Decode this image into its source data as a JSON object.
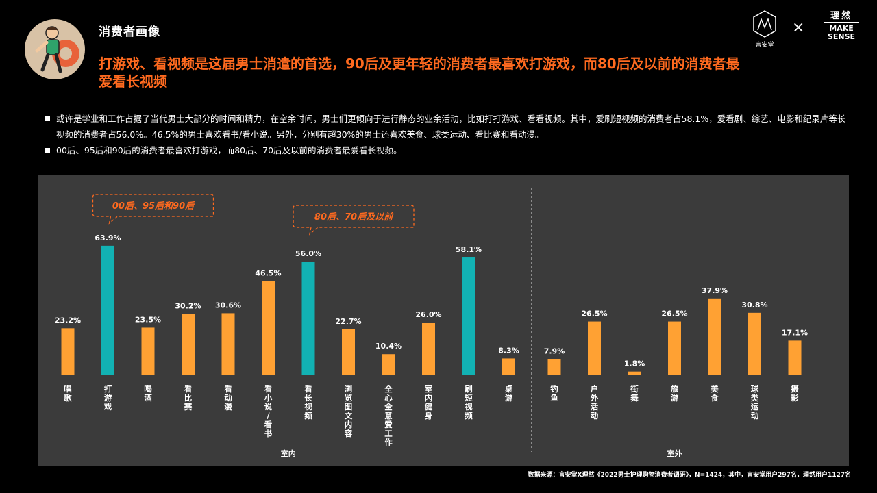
{
  "header": {
    "section_title": "消费者画像",
    "headline": "打游戏、看视频是这届男士消遣的首选，90后及更年轻的消费者最喜欢打游戏，而80后及以前的消费者最爱看长视频"
  },
  "logos": {
    "left_text": "言安堂",
    "times": "×",
    "right_cn": "理然",
    "right_en_1": "MAKE",
    "right_en_2": "SENSE"
  },
  "bullets": [
    "或许是学业和工作占据了当代男士大部分的时间和精力，在空余时间，男士们更倾向于进行静态的业余活动，比如打打游戏、看看视频。其中，爱刷短视频的消费者占58.1%，爱看剧、综艺、电影和纪录片等长视频的消费者占56.0%。46.5%的男士喜欢看书/看小说。另外，分别有超30%的男士还喜欢美食、球类运动、看比赛和看动漫。",
    "00后、95后和90后的消费者最喜欢打游戏，而80后、70后及以前的消费者最爱看长视频。"
  ],
  "colors": {
    "orange": "#ffa133",
    "teal": "#12b2b3",
    "headline": "#ff6a1f",
    "panel": "#3b3b3b"
  },
  "chart_data": {
    "type": "bar",
    "ylim": [
      0,
      70
    ],
    "grid": false,
    "unit": "%",
    "groups": [
      {
        "label": "室内",
        "start": 0,
        "end": 11
      },
      {
        "label": "室外",
        "start": 12,
        "end": 18
      }
    ],
    "categories": [
      "唱歌",
      "打游戏",
      "喝酒",
      "看比赛",
      "看动漫",
      "看小说/看书",
      "看长视频",
      "浏览图文内容",
      "全心全意爱工作",
      "室内健身",
      "刷短视频",
      "桌游",
      "钓鱼",
      "户外活动",
      "街舞",
      "旅游",
      "美食",
      "球类运动",
      "摄影"
    ],
    "values": [
      23.2,
      63.9,
      23.5,
      30.2,
      30.6,
      46.5,
      56.0,
      22.7,
      10.4,
      26.0,
      58.1,
      8.3,
      7.9,
      26.5,
      1.8,
      26.5,
      37.9,
      30.8,
      17.1
    ],
    "value_labels": [
      "23.2%",
      "63.9%",
      "23.5%",
      "30.2%",
      "30.6%",
      "46.5%",
      "56.0%",
      "22.7%",
      "10.4%",
      "26.0%",
      "58.1%",
      "8.3%",
      "7.9%",
      "26.5%",
      "1.8%",
      "26.5%",
      "37.9%",
      "30.8%",
      "17.1%"
    ],
    "highlighted": [
      false,
      true,
      false,
      false,
      false,
      false,
      true,
      false,
      false,
      false,
      true,
      false,
      false,
      false,
      false,
      false,
      false,
      false,
      false
    ],
    "annotations": [
      {
        "text": "00后、95后和90后",
        "target_index": 1
      },
      {
        "text": "80后、70后及以前",
        "target_index": 6
      }
    ]
  },
  "footer": {
    "source": "数据来源：言安堂X理然《2022男士护理购物消费者调研》，N=1424，其中，言安堂用户297名，理然用户1127名"
  }
}
